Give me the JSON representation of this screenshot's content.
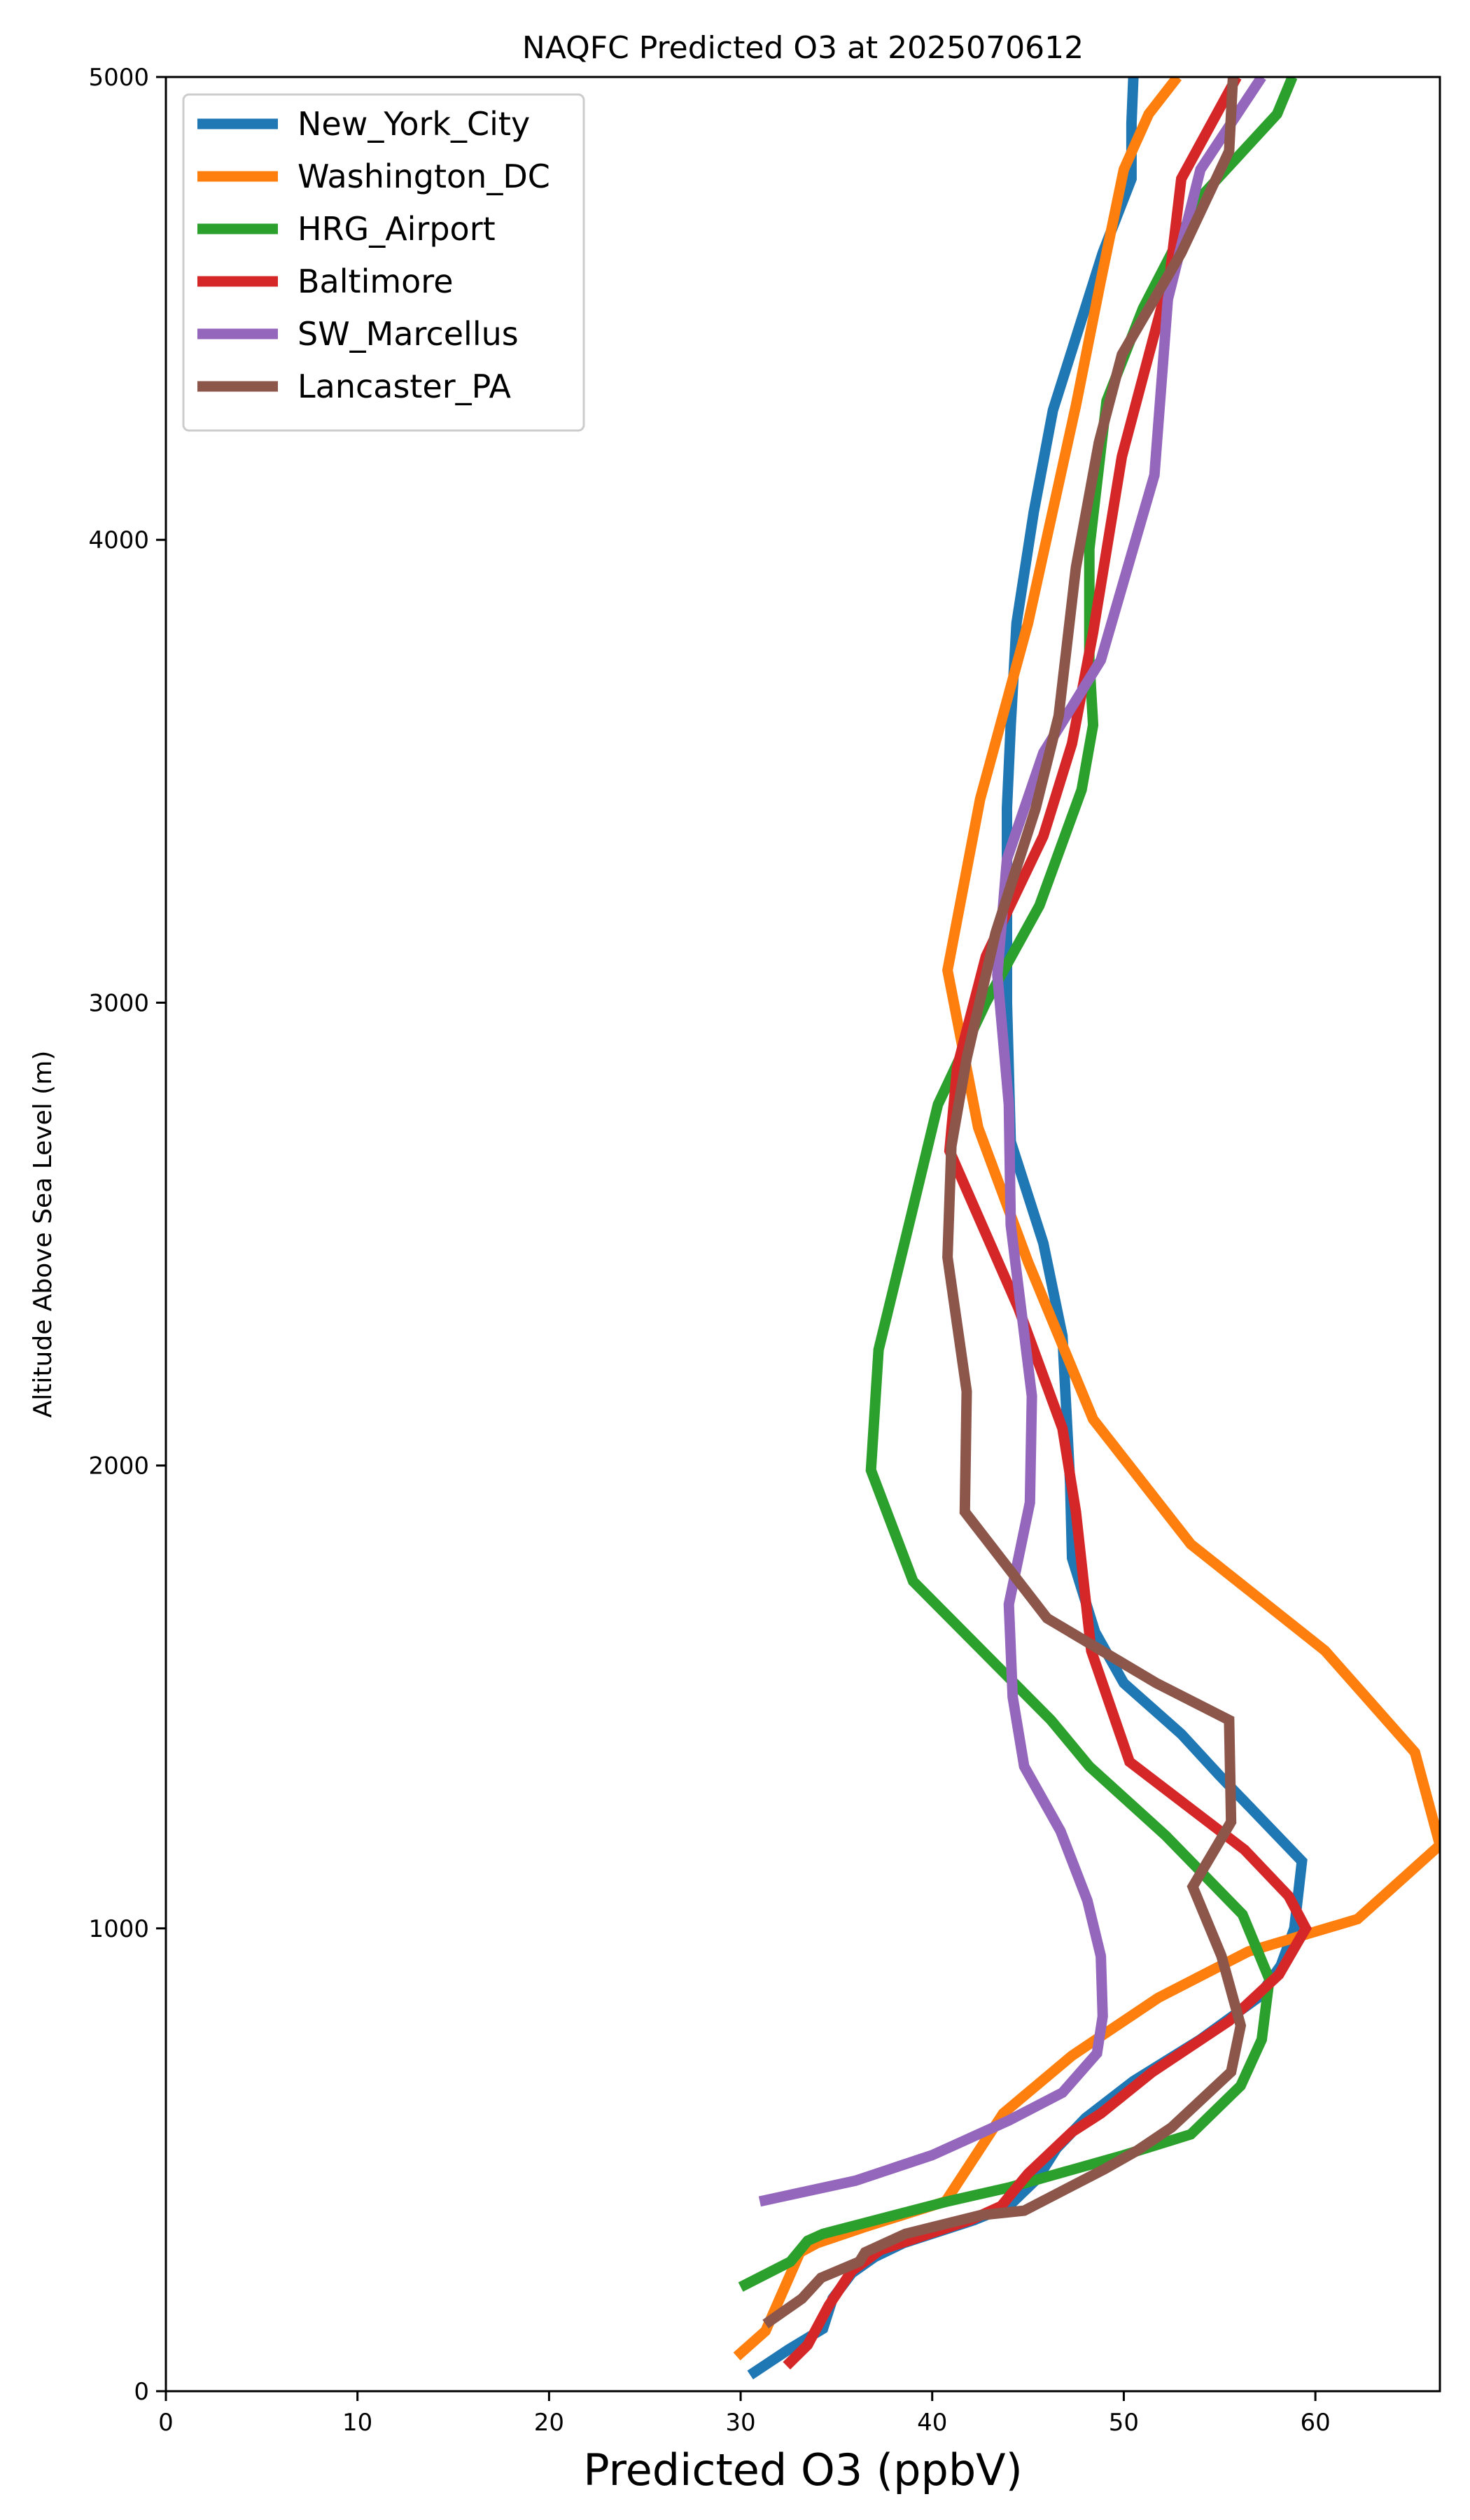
{
  "chart_data": {
    "type": "line",
    "orientation": "horizontal-profile",
    "title": "NAQFC Predicted O3 at 2025070612",
    "xlabel": "Predicted O3 (ppbV)",
    "ylabel": "Altitude Above Sea Level (m)",
    "xlim": [
      0,
      66.5
    ],
    "ylim": [
      0,
      5000
    ],
    "xticks": [
      0,
      10,
      20,
      30,
      40,
      50,
      60
    ],
    "yticks": [
      0,
      1000,
      2000,
      3000,
      4000,
      5000
    ],
    "grid": false,
    "legend_position": "top-left",
    "series": [
      {
        "name": "New_York_City",
        "color": "#1f77b4",
        "points": [
          [
            30.5,
            35
          ],
          [
            32.5,
            90
          ],
          [
            34.3,
            135
          ],
          [
            34.8,
            200
          ],
          [
            35.8,
            255
          ],
          [
            37,
            290
          ],
          [
            38.5,
            320
          ],
          [
            42.2,
            370
          ],
          [
            44,
            400
          ],
          [
            45.5,
            460
          ],
          [
            46.5,
            525
          ],
          [
            48,
            590
          ],
          [
            50.5,
            670
          ],
          [
            54,
            760
          ],
          [
            57,
            850
          ],
          [
            58.2,
            920
          ],
          [
            58.9,
            1000
          ],
          [
            59.3,
            1145
          ],
          [
            55,
            1330
          ],
          [
            53,
            1420
          ],
          [
            50,
            1530
          ],
          [
            48.5,
            1640
          ],
          [
            47.3,
            1800
          ],
          [
            47.2,
            1960
          ],
          [
            46.8,
            2280
          ],
          [
            45.8,
            2480
          ],
          [
            44.1,
            2700
          ],
          [
            43.9,
            3000
          ],
          [
            43.9,
            3200
          ],
          [
            43.9,
            3420
          ],
          [
            44.1,
            3600
          ],
          [
            44.4,
            3820
          ],
          [
            45.3,
            4060
          ],
          [
            46.3,
            4280
          ],
          [
            48.9,
            4620
          ],
          [
            50.4,
            4780
          ],
          [
            50.4,
            4900
          ],
          [
            50.5,
            5000
          ]
        ]
      },
      {
        "name": "Washington_DC",
        "color": "#ff7f0e",
        "points": [
          [
            29.8,
            75
          ],
          [
            31.3,
            130
          ],
          [
            33.1,
            300
          ],
          [
            34,
            320
          ],
          [
            36.5,
            355
          ],
          [
            40.7,
            410
          ],
          [
            43.7,
            600
          ],
          [
            47.3,
            725
          ],
          [
            51.8,
            850
          ],
          [
            56.5,
            950
          ],
          [
            62.2,
            1020
          ],
          [
            66.5,
            1180
          ],
          [
            65.2,
            1380
          ],
          [
            60.5,
            1600
          ],
          [
            53.5,
            1830
          ],
          [
            48.4,
            2100
          ],
          [
            45,
            2440
          ],
          [
            42.4,
            2730
          ],
          [
            40.8,
            3070
          ],
          [
            42.5,
            3440
          ],
          [
            45,
            3820
          ],
          [
            47.5,
            4290
          ],
          [
            48.8,
            4560
          ],
          [
            50,
            4800
          ],
          [
            51.3,
            4920
          ],
          [
            52.8,
            5000
          ]
        ]
      },
      {
        "name": "HRG_Airport",
        "color": "#2ca02c",
        "points": [
          [
            30,
            225
          ],
          [
            32.6,
            280
          ],
          [
            33.5,
            325
          ],
          [
            34.3,
            340
          ],
          [
            40.8,
            410
          ],
          [
            44,
            440
          ],
          [
            50,
            510
          ],
          [
            53.5,
            555
          ],
          [
            56.1,
            660
          ],
          [
            57.2,
            760
          ],
          [
            57.6,
            890
          ],
          [
            56.2,
            1030
          ],
          [
            52.2,
            1200
          ],
          [
            48.2,
            1350
          ],
          [
            46.2,
            1450
          ],
          [
            39,
            1750
          ],
          [
            36.8,
            1990
          ],
          [
            37.2,
            2250
          ],
          [
            38.9,
            2540
          ],
          [
            40.3,
            2780
          ],
          [
            42.8,
            3000
          ],
          [
            45.6,
            3210
          ],
          [
            47.8,
            3460
          ],
          [
            48.4,
            3600
          ],
          [
            48.2,
            3740
          ],
          [
            48.2,
            3980
          ],
          [
            49.1,
            4300
          ],
          [
            51,
            4500
          ],
          [
            54,
            4740
          ],
          [
            58,
            4920
          ],
          [
            58.8,
            5000
          ]
        ]
      },
      {
        "name": "Baltimore",
        "color": "#d62728",
        "points": [
          [
            32.4,
            55
          ],
          [
            33.5,
            100
          ],
          [
            34.6,
            185
          ],
          [
            35.8,
            260
          ],
          [
            37.3,
            305
          ],
          [
            42,
            370
          ],
          [
            43.6,
            400
          ],
          [
            45,
            470
          ],
          [
            47.3,
            560
          ],
          [
            48.8,
            600
          ],
          [
            51.5,
            690
          ],
          [
            55.5,
            800
          ],
          [
            58.1,
            900
          ],
          [
            59.5,
            1000
          ],
          [
            58.6,
            1070
          ],
          [
            56.3,
            1170
          ],
          [
            50.3,
            1360
          ],
          [
            48.3,
            1600
          ],
          [
            47.5,
            1900
          ],
          [
            46.8,
            2080
          ],
          [
            44.5,
            2340
          ],
          [
            40.9,
            2680
          ],
          [
            41.3,
            2860
          ],
          [
            42.8,
            3100
          ],
          [
            45.8,
            3360
          ],
          [
            47.3,
            3560
          ],
          [
            48.4,
            3800
          ],
          [
            49.9,
            4180
          ],
          [
            52.4,
            4570
          ],
          [
            53,
            4780
          ],
          [
            55.9,
            5000
          ]
        ]
      },
      {
        "name": "SW_Marcellus",
        "color": "#9467bd",
        "points": [
          [
            31,
            410
          ],
          [
            36,
            455
          ],
          [
            40,
            510
          ],
          [
            44,
            585
          ],
          [
            46.8,
            645
          ],
          [
            48.6,
            730
          ],
          [
            48.9,
            810
          ],
          [
            48.8,
            940
          ],
          [
            48.1,
            1060
          ],
          [
            46.7,
            1210
          ],
          [
            44.8,
            1350
          ],
          [
            44.2,
            1500
          ],
          [
            44,
            1700
          ],
          [
            45.1,
            1920
          ],
          [
            45.2,
            2150
          ],
          [
            44.1,
            2520
          ],
          [
            44,
            2780
          ],
          [
            43.4,
            3060
          ],
          [
            43.9,
            3310
          ],
          [
            45.8,
            3540
          ],
          [
            48.8,
            3740
          ],
          [
            51.6,
            4140
          ],
          [
            52.3,
            4520
          ],
          [
            54,
            4800
          ],
          [
            57.2,
            5000
          ]
        ]
      },
      {
        "name": "Lancaster_PA",
        "color": "#8c564b",
        "points": [
          [
            31.3,
            145
          ],
          [
            33.2,
            200
          ],
          [
            34.2,
            245
          ],
          [
            36.2,
            280
          ],
          [
            36.5,
            300
          ],
          [
            38.6,
            340
          ],
          [
            42.5,
            380
          ],
          [
            44.8,
            390
          ],
          [
            49,
            480
          ],
          [
            50.7,
            520
          ],
          [
            52.5,
            570
          ],
          [
            55.6,
            690
          ],
          [
            56.1,
            790
          ],
          [
            55.1,
            940
          ],
          [
            53.6,
            1090
          ],
          [
            55.6,
            1230
          ],
          [
            55.5,
            1450
          ],
          [
            51.7,
            1530
          ],
          [
            46,
            1670
          ],
          [
            41.7,
            1900
          ],
          [
            41.8,
            2160
          ],
          [
            40.8,
            2450
          ],
          [
            41,
            2690
          ],
          [
            41.8,
            2880
          ],
          [
            43.3,
            3150
          ],
          [
            45.4,
            3420
          ],
          [
            46.6,
            3620
          ],
          [
            47.5,
            3940
          ],
          [
            48.7,
            4210
          ],
          [
            49.9,
            4400
          ],
          [
            53,
            4620
          ],
          [
            55.5,
            4840
          ],
          [
            55.7,
            5000
          ]
        ]
      }
    ]
  }
}
